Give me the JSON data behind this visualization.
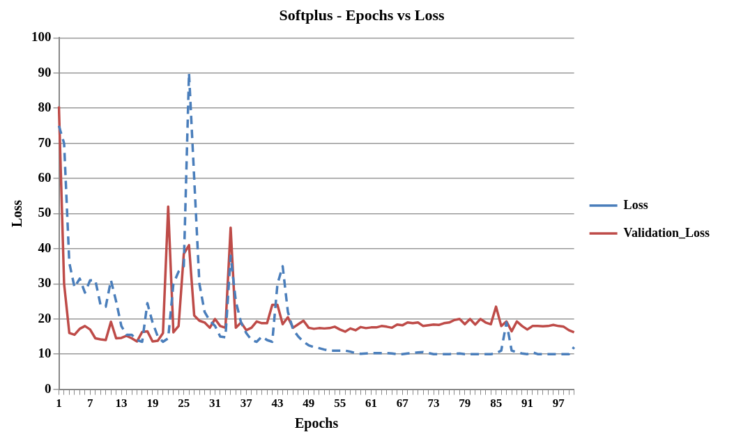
{
  "chart_data": {
    "type": "line",
    "title": "Softplus - Epochs vs Loss",
    "xlabel": "Epochs",
    "ylabel": "Loss",
    "categories": [
      "1",
      null,
      null,
      null,
      null,
      null,
      "7",
      null,
      null,
      null,
      null,
      null,
      "13",
      null,
      null,
      null,
      null,
      null,
      "19",
      null,
      null,
      null,
      null,
      null,
      "25",
      null,
      null,
      null,
      null,
      null,
      "31",
      null,
      null,
      null,
      null,
      null,
      "37",
      null,
      null,
      null,
      null,
      null,
      "43",
      null,
      null,
      null,
      null,
      null,
      "49",
      null,
      null,
      null,
      null,
      null,
      "55",
      null,
      null,
      null,
      null,
      null,
      "61",
      null,
      null,
      null,
      null,
      null,
      "67",
      null,
      null,
      null,
      null,
      null,
      "73",
      null,
      null,
      null,
      null,
      null,
      "79",
      null,
      null,
      null,
      null,
      null,
      "85",
      null,
      null,
      null,
      null,
      null,
      "91",
      null,
      null,
      null,
      null,
      null,
      "97",
      null,
      null,
      null
    ],
    "series": [
      {
        "name": "Loss",
        "color": "#4a7ebb",
        "line_style": "dashed",
        "values": [
          75,
          70,
          36,
          29,
          31.5,
          27.5,
          31,
          31,
          24,
          23.5,
          31,
          25,
          18,
          15.5,
          15.5,
          14,
          13.5,
          24.5,
          19,
          15,
          13.5,
          14.5,
          30,
          33.5,
          35,
          90,
          60,
          30,
          22,
          19.5,
          18,
          15,
          14.8,
          38,
          25,
          19,
          16,
          14,
          13.5,
          15,
          14,
          13.5,
          30,
          35,
          22,
          17,
          15,
          13.5,
          12.5,
          12,
          11.7,
          11.3,
          11,
          11,
          11,
          11,
          10.7,
          10.3,
          10.1,
          10.2,
          10.3,
          10.3,
          10.3,
          10.3,
          10.2,
          10,
          10,
          10.2,
          10.3,
          10.5,
          10.6,
          10.3,
          10,
          10,
          10,
          10,
          10.1,
          10.2,
          10,
          10,
          10,
          10,
          10,
          10,
          10.2,
          11,
          19,
          11,
          10.5,
          10.2,
          10,
          10.5,
          10,
          10,
          10,
          10,
          10,
          10,
          10,
          12
        ]
      },
      {
        "name": "Validation_Loss",
        "color": "#be4b48",
        "line_style": "solid",
        "values": [
          80.5,
          30,
          16,
          15.5,
          17.2,
          18,
          17,
          14.5,
          14.2,
          14,
          19.2,
          14.5,
          14.6,
          15.2,
          14.5,
          13.6,
          16.3,
          16.5,
          13.6,
          13.8,
          16,
          52,
          16.2,
          18,
          38.5,
          41,
          21,
          19.5,
          19,
          17.5,
          20,
          18,
          17.5,
          46,
          17.5,
          19,
          16.8,
          17.5,
          19.3,
          18.8,
          18.8,
          24,
          24,
          18.5,
          20.5,
          17.5,
          18.5,
          19.5,
          17.5,
          17.2,
          17.4,
          17.3,
          17.4,
          17.8,
          17,
          16.4,
          17.3,
          16.8,
          17.7,
          17.4,
          17.6,
          17.6,
          18,
          17.8,
          17.5,
          18.4,
          18.2,
          19,
          18.8,
          19,
          18,
          18.2,
          18.4,
          18.3,
          18.8,
          19,
          19.7,
          20,
          18.5,
          20,
          18.4,
          20,
          19,
          18.5,
          23.5,
          18,
          19.3,
          16.5,
          19.3,
          18,
          17,
          18,
          18,
          17.9,
          18,
          18.3,
          18,
          17.8,
          16.8,
          16.2
        ]
      }
    ],
    "ylim": [
      0,
      100
    ],
    "yticks": [
      0,
      10,
      20,
      30,
      40,
      50,
      60,
      70,
      80,
      90,
      100
    ],
    "grid": "y",
    "legend": "right",
    "marker": "none"
  }
}
